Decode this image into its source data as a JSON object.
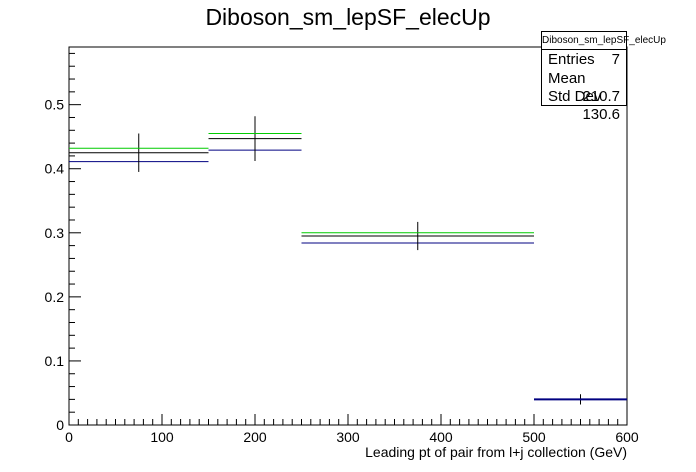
{
  "chart_data": {
    "type": "histogram",
    "title": "Diboson_sm_lepSF_elecUp",
    "xlabel": "Leading pt of pair from l+j collection (GeV)",
    "ylabel": "",
    "xlim": [
      0,
      600
    ],
    "ylim": [
      0,
      0.59
    ],
    "x_ticks": [
      0,
      100,
      200,
      300,
      400,
      500,
      600
    ],
    "y_ticks": [
      0,
      0.1,
      0.2,
      0.3,
      0.4,
      0.5
    ],
    "y_tick_labels": [
      "0",
      "0.1",
      "0.2",
      "0.3",
      "0.4",
      "0.5"
    ],
    "bins": [
      {
        "low": 0,
        "high": 150,
        "center": 75
      },
      {
        "low": 150,
        "high": 250,
        "center": 200
      },
      {
        "low": 250,
        "high": 500,
        "center": 375
      },
      {
        "low": 500,
        "high": 600,
        "center": 550
      }
    ],
    "series": [
      {
        "color": "#000080",
        "values": [
          0.411,
          0.429,
          0.284,
          0.04
        ]
      },
      {
        "color": "#000000",
        "values": [
          0.425,
          0.447,
          0.295,
          0.04
        ],
        "errors": [
          0.03,
          0.035,
          0.022,
          0.008
        ]
      },
      {
        "color": "#00cc00",
        "values": [
          0.432,
          0.455,
          0.3,
          0.04
        ]
      }
    ],
    "grid": false,
    "legend": "none"
  },
  "stats_box": {
    "title": "Diboson_sm_lepSF_elecUp",
    "rows": [
      {
        "label": "Entries",
        "value": "7"
      },
      {
        "label": "Mean",
        "value": "210.7"
      },
      {
        "label": "Std Dev",
        "value": "130.6"
      }
    ]
  }
}
